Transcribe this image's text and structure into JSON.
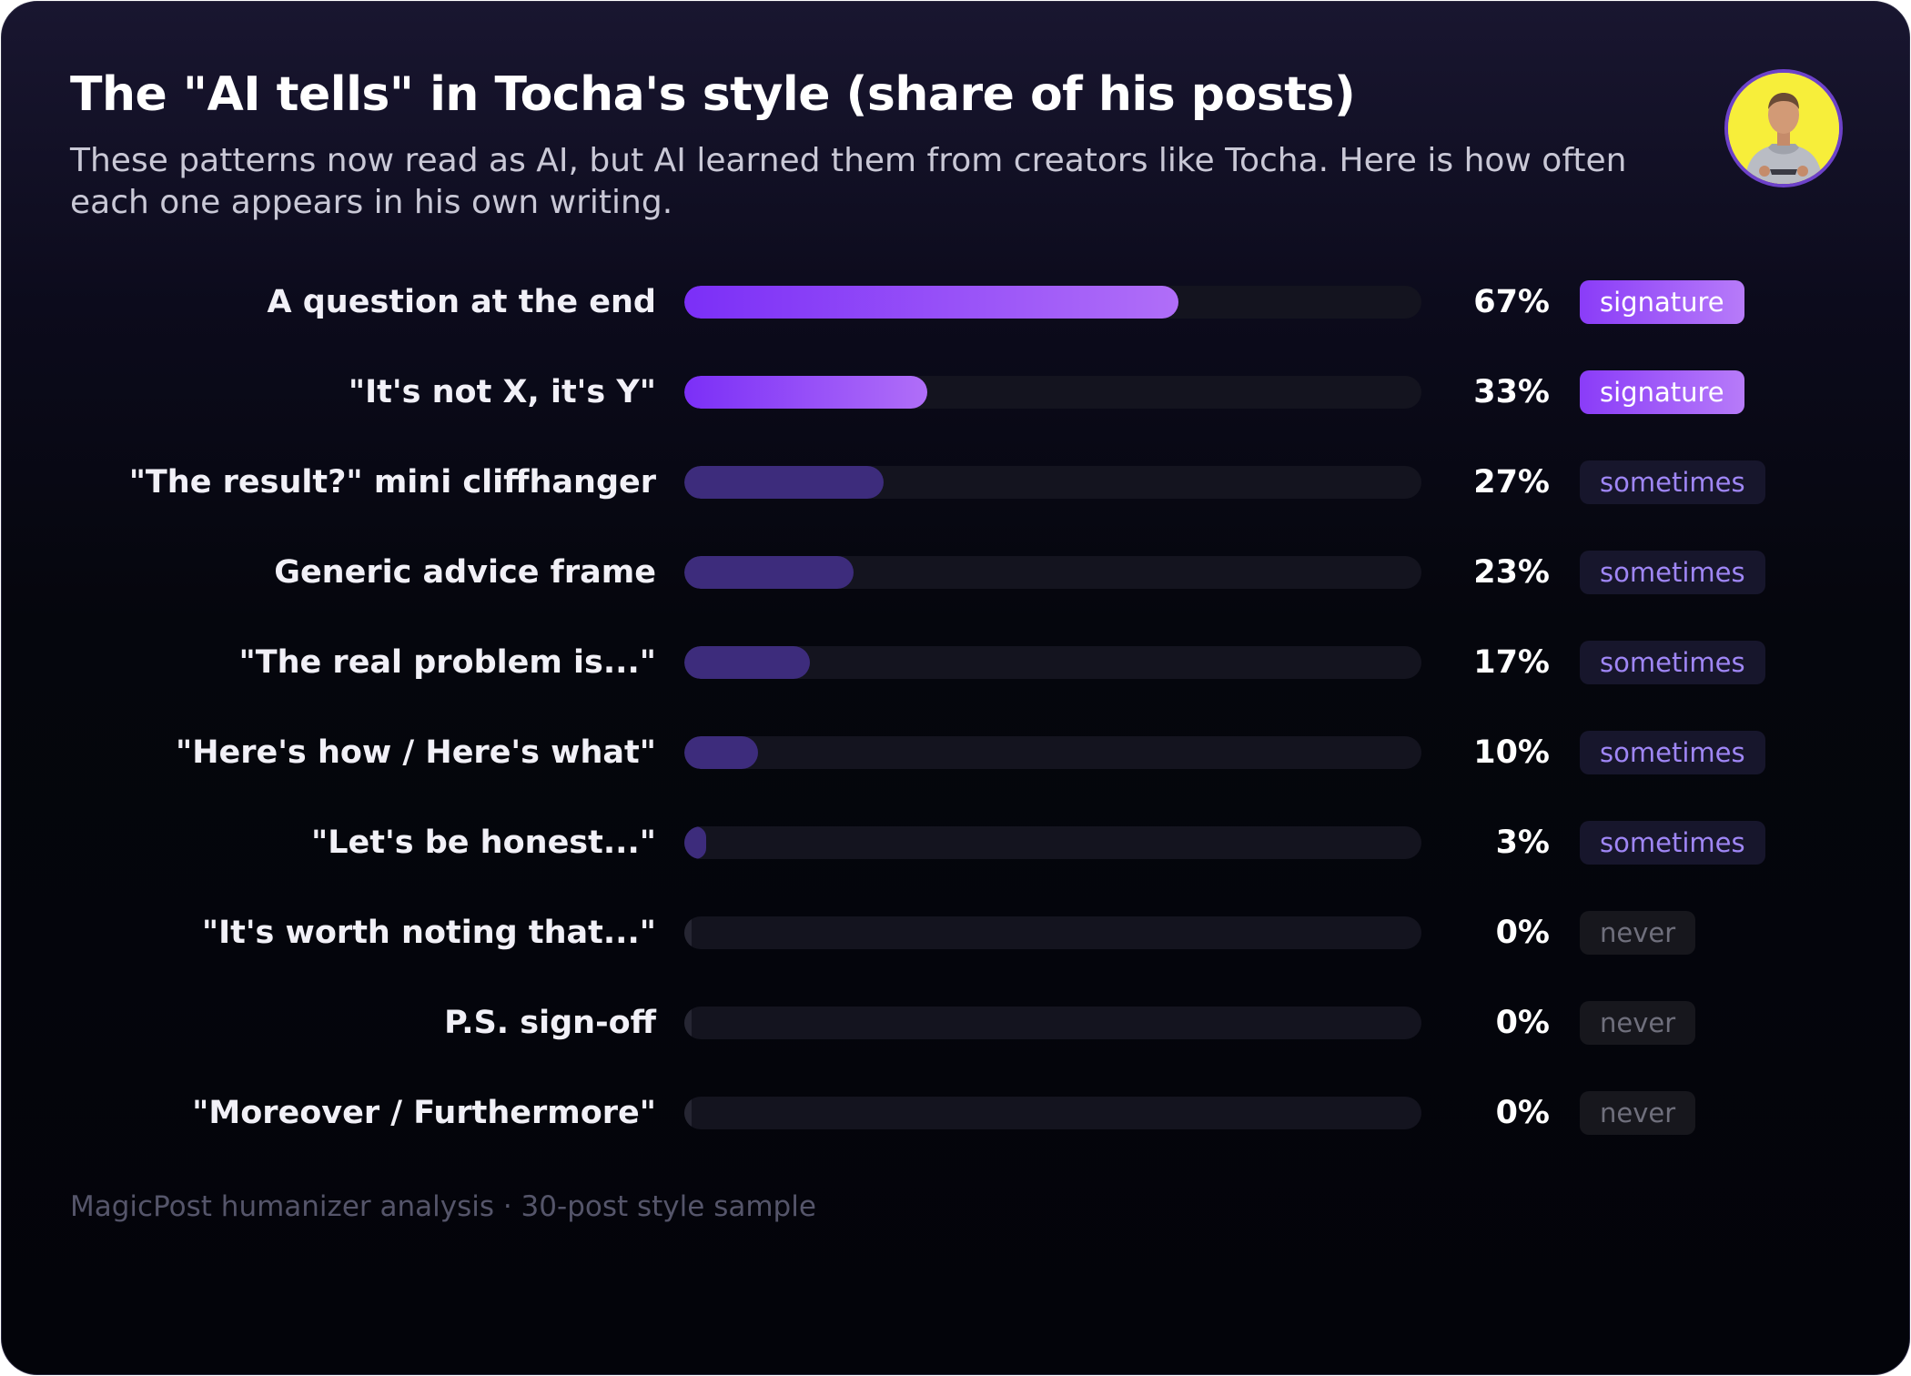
{
  "header": {
    "title": "The \"AI tells\" in Tocha's style (share of his posts)",
    "subtitle": "These patterns now read as AI, but AI learned them from creators like Tocha. Here is how often each one appears in his own writing."
  },
  "footer": {
    "source": "MagicPost humanizer analysis · 30-post style sample"
  },
  "colors": {
    "signature": "#8a3cf8",
    "sometimes": "#3d2c7c",
    "never": "#262633",
    "avatar_bg": "#f7ee3a"
  },
  "chart_data": {
    "type": "bar",
    "orientation": "horizontal",
    "xlim": [
      0,
      100
    ],
    "unit": "%",
    "rows": [
      {
        "label": "A question at the end",
        "value": 67,
        "display": "67%",
        "tag": "signature"
      },
      {
        "label": "\"It's not X, it's Y\"",
        "value": 33,
        "display": "33%",
        "tag": "signature"
      },
      {
        "label": "\"The result?\" mini cliffhanger",
        "value": 27,
        "display": "27%",
        "tag": "sometimes"
      },
      {
        "label": "Generic advice frame",
        "value": 23,
        "display": "23%",
        "tag": "sometimes"
      },
      {
        "label": "\"The real problem is...\"",
        "value": 17,
        "display": "17%",
        "tag": "sometimes"
      },
      {
        "label": "\"Here's how / Here's what\"",
        "value": 10,
        "display": "10%",
        "tag": "sometimes"
      },
      {
        "label": "\"Let's be honest...\"",
        "value": 3,
        "display": "3%",
        "tag": "sometimes"
      },
      {
        "label": "\"It's worth noting that...\"",
        "value": 0,
        "display": "0%",
        "tag": "never"
      },
      {
        "label": "P.S. sign-off",
        "value": 0,
        "display": "0%",
        "tag": "never"
      },
      {
        "label": "\"Moreover / Furthermore\"",
        "value": 0,
        "display": "0%",
        "tag": "never"
      }
    ]
  }
}
